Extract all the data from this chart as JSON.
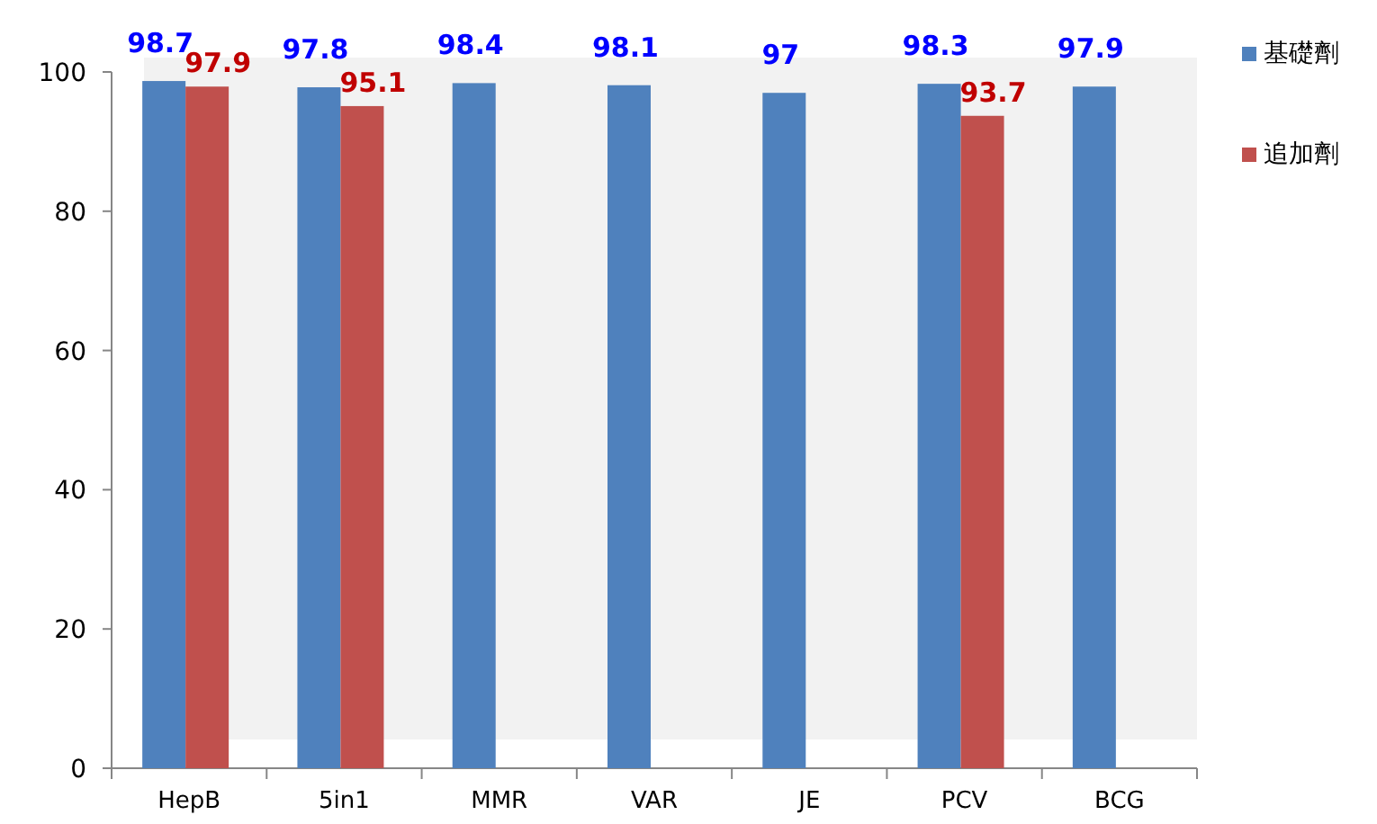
{
  "chart_data": {
    "type": "bar",
    "categories": [
      "HepB",
      "5in1",
      "MMR",
      "VAR",
      "JE",
      "PCV",
      "BCG"
    ],
    "series": [
      {
        "name": "基礎劑",
        "color": "#4f81bd",
        "values": [
          98.7,
          97.8,
          98.4,
          98.1,
          97,
          98.3,
          97.9
        ]
      },
      {
        "name": "追加劑",
        "color": "#c0504d",
        "values": [
          97.9,
          95.1,
          null,
          null,
          null,
          93.7,
          null
        ]
      }
    ],
    "ylim": [
      0,
      100
    ],
    "yticks": [
      0,
      20,
      40,
      60,
      80,
      100
    ],
    "data_labels": true,
    "legend": "right",
    "grid": false
  }
}
